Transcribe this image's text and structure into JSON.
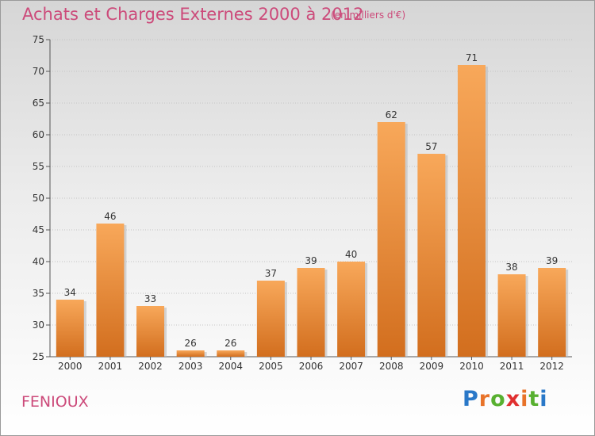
{
  "header": {
    "title": "Achats et Charges Externes 2000 à 2012",
    "unit": "(en milliers d'€)"
  },
  "footer": {
    "commune": "FENIOUX",
    "logo": {
      "letters": [
        "P",
        "r",
        "o",
        "x",
        "i",
        "t",
        "i"
      ],
      "colors": [
        "#2a78c8",
        "#e8732a",
        "#58b030",
        "#e03030",
        "#e8732a",
        "#58b030",
        "#2a78c8"
      ]
    }
  },
  "chart_data": {
    "type": "bar",
    "title": "Achats et Charges Externes 2000 à 2012",
    "subtitle": "(en milliers d'€)",
    "categories": [
      "2000",
      "2001",
      "2002",
      "2003",
      "2004",
      "2005",
      "2006",
      "2007",
      "2008",
      "2009",
      "2010",
      "2011",
      "2012"
    ],
    "values": [
      34,
      46,
      33,
      26,
      26,
      37,
      39,
      40,
      62,
      57,
      71,
      38,
      39
    ],
    "ylim": [
      25,
      75
    ],
    "yticks": [
      25,
      30,
      35,
      40,
      45,
      50,
      55,
      60,
      65,
      70,
      75
    ],
    "xlabel": "",
    "ylabel": "",
    "grid": true,
    "bar_color_top": "#f8a85a",
    "bar_color_bottom": "#d26e1e"
  }
}
